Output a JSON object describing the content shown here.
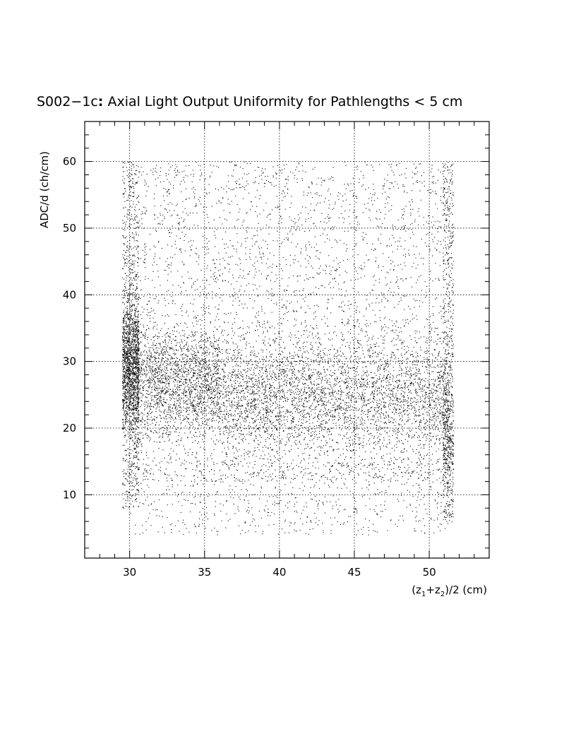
{
  "chart_data": {
    "type": "scatter",
    "title_parts": [
      "S002",
      "−1c",
      ":",
      " Axial Light Output Uniformity for Pathlengths < 5 cm"
    ],
    "xlabel_parts": {
      "open": "(z",
      "sub1": "1",
      "plus": "+z",
      "sub2": "2",
      "close": ")/2 (cm)"
    },
    "ylabel": "ADC/d (ch/cm)",
    "xlim": [
      27,
      54
    ],
    "ylim": [
      0.5,
      66
    ],
    "xticks": [
      30,
      35,
      40,
      45,
      50
    ],
    "xtick_labels": [
      "30",
      "35",
      "40",
      "45",
      "50"
    ],
    "yticks": [
      10,
      20,
      30,
      40,
      50,
      60
    ],
    "ytick_labels": [
      "10",
      "20",
      "30",
      "40",
      "50",
      "60"
    ],
    "grid": true,
    "legend": "none",
    "point_color": "#000000",
    "series": [
      {
        "description": "dense scatter of events; generated from these density bands",
        "x_range": [
          29.5,
          51.8
        ],
        "y_range": [
          3,
          60
        ],
        "bands": [
          {
            "x": [
              29.5,
              30.6
            ],
            "y_center": 29,
            "y_spread": 5,
            "count": 1400
          },
          {
            "x": [
              29.5,
              30.6
            ],
            "y_min": 8,
            "y_max": 60,
            "count": 700
          },
          {
            "x": [
              30.5,
              36
            ],
            "y_center": 27,
            "y_spread": 4,
            "count": 1800
          },
          {
            "x": [
              36,
              51
            ],
            "y_center": 25,
            "y_spread": 4.5,
            "count": 3200
          },
          {
            "x": [
              30,
              51
            ],
            "y_min": 12,
            "y_max": 60,
            "count": 3600
          },
          {
            "x": [
              30,
              51
            ],
            "y_min": 4,
            "y_max": 15,
            "count": 700
          },
          {
            "x": [
              50.9,
              51.6
            ],
            "y_min": 6,
            "y_max": 60,
            "count": 600
          },
          {
            "x": [
              50.9,
              51.6
            ],
            "y_center": 20,
            "y_spread": 6,
            "count": 400
          }
        ]
      }
    ]
  }
}
